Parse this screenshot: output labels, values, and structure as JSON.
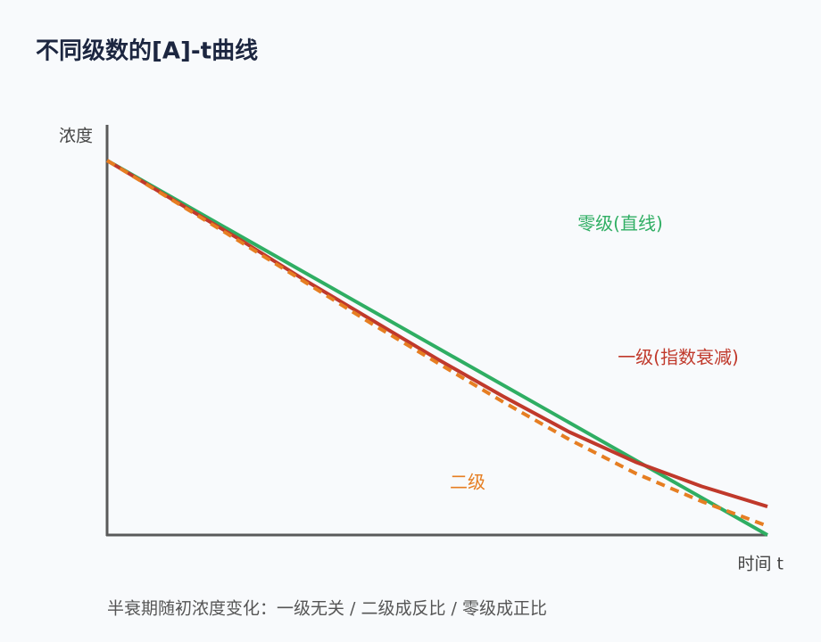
{
  "chart_data": {
    "type": "line",
    "title": "不同级数的[A]-t曲线",
    "y_label": "浓度",
    "x_label": "时间 t",
    "note": "半衰期随初浓度变化：一级无关 / 二级成反比 / 零级成正比",
    "x": [
      0,
      1,
      2,
      3,
      4,
      5,
      6,
      7,
      8,
      9,
      10
    ],
    "xlim": [
      0,
      10
    ],
    "ylim": [
      0,
      1.1
    ],
    "series": [
      {
        "name": "零级(直线)",
        "color": "#2fae63",
        "dash": false,
        "values": [
          1.0,
          0.9,
          0.8,
          0.7,
          0.6,
          0.5,
          0.4,
          0.3,
          0.2,
          0.1,
          0.0
        ]
      },
      {
        "name": "一级(指数衰减)",
        "color": "#c0392b",
        "dash": false,
        "values": [
          1.0,
          0.895,
          0.79,
          0.68,
          0.575,
          0.47,
          0.37,
          0.275,
          0.195,
          0.13,
          0.076
        ]
      },
      {
        "name": "二级",
        "color": "#e67e22",
        "dash": true,
        "values": [
          1.0,
          0.893,
          0.785,
          0.675,
          0.565,
          0.46,
          0.355,
          0.255,
          0.165,
          0.09,
          0.024
        ]
      }
    ]
  }
}
